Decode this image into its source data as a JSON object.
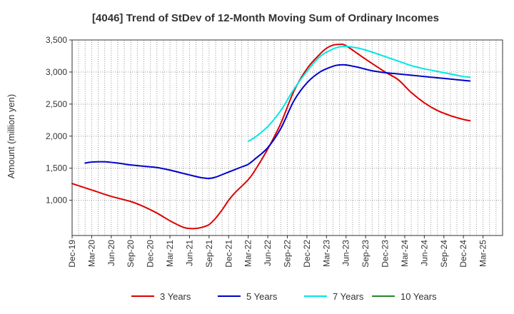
{
  "chart_data": {
    "type": "line",
    "title": "[4046]  Trend of StDev of 12-Month Moving Sum of Ordinary Incomes",
    "xlabel": "",
    "ylabel": "Amount (million yen)",
    "ylim": [
      450,
      3500
    ],
    "yticks": [
      1000,
      1500,
      2000,
      2500,
      3000,
      3500
    ],
    "ytick_labels": [
      "1,000",
      "1,500",
      "2,000",
      "2,500",
      "3,000",
      "3,500"
    ],
    "xlim": [
      0,
      66
    ],
    "x_tick_labels": [
      "Dec-19",
      "Mar-20",
      "Jun-20",
      "Sep-20",
      "Dec-20",
      "Mar-21",
      "Jun-21",
      "Sep-21",
      "Dec-21",
      "Mar-22",
      "Jun-22",
      "Sep-22",
      "Dec-22",
      "Mar-23",
      "Jun-23",
      "Sep-23",
      "Dec-23",
      "Mar-24",
      "Jun-24",
      "Sep-24",
      "Dec-24",
      "Mar-25"
    ],
    "x_tick_months": [
      0,
      3,
      6,
      9,
      12,
      15,
      18,
      21,
      24,
      27,
      30,
      33,
      36,
      39,
      42,
      45,
      48,
      51,
      54,
      57,
      60,
      63
    ],
    "grid": true,
    "legend_position": "bottom",
    "series": [
      {
        "name": "3 Years",
        "color": "#dd0000",
        "x": [
          0,
          3,
          6,
          9,
          11,
          13,
          15,
          17,
          18,
          19,
          20,
          21,
          22,
          23,
          24,
          25,
          27,
          28,
          30,
          32,
          34,
          36,
          38,
          39,
          40,
          41,
          42,
          45,
          48,
          50,
          52,
          54,
          56,
          58,
          60,
          61
        ],
        "values": [
          1260,
          1160,
          1060,
          980,
          900,
          800,
          680,
          580,
          560,
          560,
          580,
          620,
          720,
          850,
          1000,
          1120,
          1320,
          1460,
          1800,
          2200,
          2700,
          3050,
          3280,
          3370,
          3420,
          3430,
          3410,
          3200,
          3000,
          2880,
          2680,
          2520,
          2400,
          2320,
          2260,
          2240
        ]
      },
      {
        "name": "5 Years",
        "color": "#0000cc",
        "x": [
          2,
          3,
          5,
          7,
          9,
          11,
          13,
          15,
          17,
          19,
          20,
          21,
          22,
          24,
          26,
          27,
          28,
          30,
          32,
          34,
          36,
          38,
          40,
          41,
          42,
          44,
          46,
          48,
          50,
          52,
          54,
          56,
          58,
          60,
          61
        ],
        "values": [
          1580,
          1595,
          1600,
          1580,
          1550,
          1530,
          1510,
          1470,
          1420,
          1370,
          1350,
          1340,
          1360,
          1440,
          1520,
          1560,
          1640,
          1820,
          2120,
          2550,
          2830,
          3000,
          3090,
          3110,
          3110,
          3070,
          3020,
          2990,
          2970,
          2950,
          2930,
          2910,
          2890,
          2870,
          2860
        ]
      },
      {
        "name": "7 Years",
        "color": "#00e6e6",
        "x": [
          27,
          28,
          30,
          32,
          34,
          36,
          38,
          40,
          41,
          42,
          44,
          46,
          48,
          50,
          52,
          54,
          56,
          58,
          60,
          61
        ],
        "values": [
          1920,
          1980,
          2150,
          2400,
          2730,
          3010,
          3240,
          3360,
          3390,
          3400,
          3370,
          3310,
          3240,
          3170,
          3100,
          3050,
          3010,
          2970,
          2930,
          2920
        ]
      },
      {
        "name": "10 Years",
        "color": "#228B22",
        "x": [],
        "values": []
      }
    ]
  }
}
